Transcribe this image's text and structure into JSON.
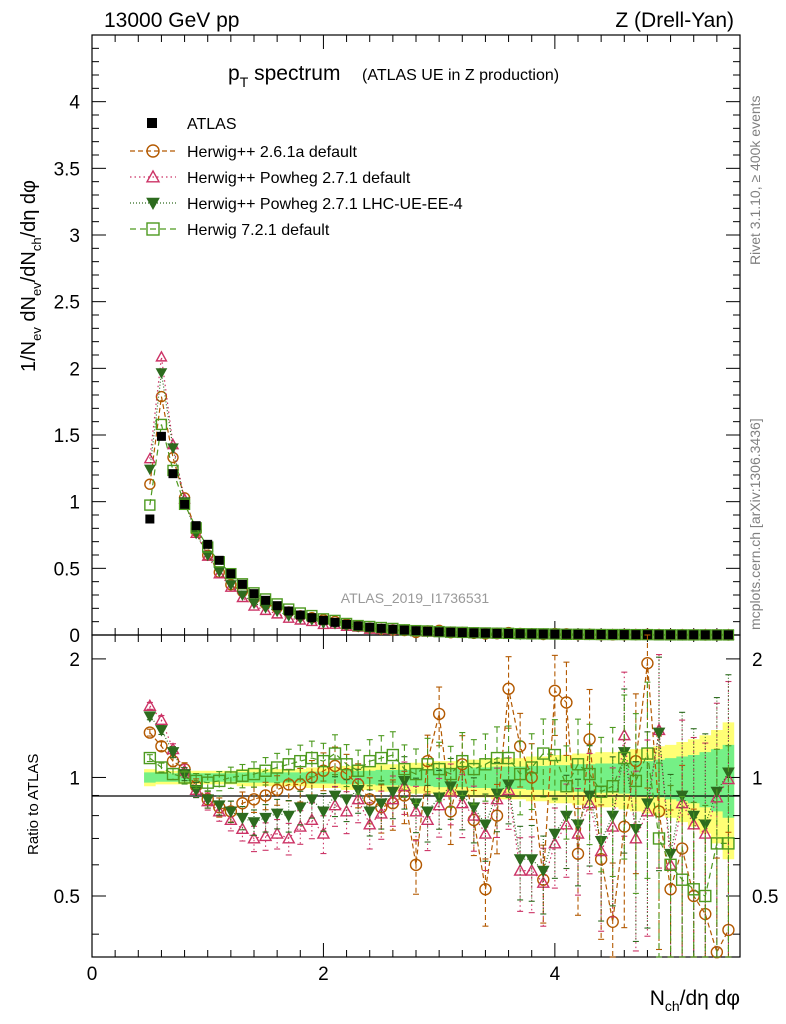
{
  "header": {
    "left": "13000 GeV pp",
    "right": "Z (Drell-Yan)"
  },
  "side_labels": {
    "rivet": "Rivet 3.1.10, ≥ 400k events",
    "mcplots": "mcplots.cern.ch [arXiv:1306.3436]"
  },
  "chart_data": {
    "type": "scatter",
    "title": "p",
    "title_sub": "T",
    "title_rest": " spectrum",
    "subtitle": "(ATLAS UE in Z production)",
    "watermark": "ATLAS_2019_I1736531",
    "xlabel": "N",
    "xlabel_sub": "ch",
    "xlabel_rest": "/dη dφ",
    "ylabel_top": "1/N",
    "ylabel_top_sub1": "ev",
    "ylabel_top_mid": " dN",
    "ylabel_top_sub2": "ev",
    "ylabel_top_mid2": "/dN",
    "ylabel_top_sub3": "ch",
    "ylabel_top_rest": "/dη dφ",
    "ylabel_bottom": "Ratio to ATLAS",
    "xlim": [
      0,
      5.6
    ],
    "ylim_top": [
      0,
      4.5
    ],
    "ylim_bottom": [
      0.35,
      2.3
    ],
    "x_ticks": [
      "0",
      "2",
      "4"
    ],
    "y_ticks_top": [
      "0",
      "0.5",
      "1",
      "1.5",
      "2",
      "2.5",
      "3",
      "3.5",
      "4"
    ],
    "y_ticks_bottom": [
      "0.5",
      "1",
      "2"
    ],
    "x": [
      0.5,
      0.6,
      0.7,
      0.8,
      0.9,
      1.0,
      1.1,
      1.2,
      1.3,
      1.4,
      1.5,
      1.6,
      1.7,
      1.8,
      1.9,
      2.0,
      2.1,
      2.2,
      2.3,
      2.4,
      2.5,
      2.6,
      2.7,
      2.8,
      2.9,
      3.0,
      3.1,
      3.2,
      3.3,
      3.4,
      3.5,
      3.6,
      3.7,
      3.8,
      3.9,
      4.0,
      4.1,
      4.2,
      4.3,
      4.4,
      4.5,
      4.6,
      4.7,
      4.8,
      4.9,
      5.0,
      5.1,
      5.2,
      5.3,
      5.4,
      5.5
    ],
    "data_values": [
      0.87,
      1.49,
      1.21,
      0.98,
      0.82,
      0.68,
      0.56,
      0.46,
      0.38,
      0.31,
      0.26,
      0.22,
      0.18,
      0.15,
      0.13,
      0.11,
      0.095,
      0.08,
      0.068,
      0.058,
      0.05,
      0.043,
      0.037,
      0.032,
      0.028,
      0.024,
      0.021,
      0.018,
      0.016,
      0.014,
      0.012,
      0.011,
      0.0095,
      0.0083,
      0.0073,
      0.0064,
      0.0056,
      0.005,
      0.0044,
      0.0039,
      0.0035,
      0.0031,
      0.0027,
      0.0024,
      0.0022,
      0.0019,
      0.0017,
      0.0015,
      0.0014,
      0.0012,
      0.0011
    ],
    "band_yellow": [
      0.05,
      0.04,
      0.04,
      0.04,
      0.04,
      0.04,
      0.04,
      0.04,
      0.05,
      0.05,
      0.05,
      0.05,
      0.05,
      0.05,
      0.06,
      0.06,
      0.06,
      0.07,
      0.07,
      0.07,
      0.08,
      0.08,
      0.08,
      0.09,
      0.09,
      0.1,
      0.1,
      0.1,
      0.11,
      0.11,
      0.12,
      0.12,
      0.12,
      0.13,
      0.13,
      0.14,
      0.14,
      0.15,
      0.15,
      0.16,
      0.16,
      0.17,
      0.18,
      0.19,
      0.2,
      0.21,
      0.23,
      0.25,
      0.28,
      0.32,
      0.38
    ],
    "band_green": [
      0.03,
      0.025,
      0.025,
      0.025,
      0.025,
      0.025,
      0.025,
      0.025,
      0.03,
      0.03,
      0.03,
      0.03,
      0.03,
      0.03,
      0.035,
      0.035,
      0.035,
      0.04,
      0.04,
      0.04,
      0.045,
      0.045,
      0.045,
      0.05,
      0.05,
      0.055,
      0.055,
      0.055,
      0.06,
      0.06,
      0.065,
      0.065,
      0.065,
      0.07,
      0.07,
      0.075,
      0.075,
      0.08,
      0.08,
      0.085,
      0.085,
      0.09,
      0.1,
      0.1,
      0.11,
      0.12,
      0.13,
      0.14,
      0.16,
      0.18,
      0.21
    ],
    "legend": {
      "data_label": "ATLAS"
    },
    "series": [
      {
        "name": "Herwig++ 2.6.1a default",
        "color": "#b35900",
        "dash": "5,3",
        "marker": "circle",
        "ratio": [
          1.3,
          1.2,
          1.1,
          1.05,
          0.95,
          0.88,
          0.84,
          0.82,
          0.86,
          0.88,
          0.9,
          0.93,
          0.96,
          0.96,
          1.0,
          1.04,
          1.07,
          1.02,
          0.96,
          0.88,
          0.84,
          0.86,
          0.9,
          0.6,
          1.1,
          1.45,
          0.82,
          1.08,
          0.78,
          0.52,
          0.8,
          1.68,
          1.2,
          1.0,
          0.55,
          1.66,
          1.55,
          0.64,
          1.25,
          0.62,
          0.43,
          0.75,
          1.1,
          1.95,
          0.82,
          0.52,
          0.66,
          0.5,
          0.45,
          0.36,
          0.41
        ]
      },
      {
        "name": "Herwig++ Powheg 2.7.1 default",
        "color": "#cc3366",
        "dash": "1.5,3",
        "marker": "triangle",
        "ratio": [
          1.52,
          1.4,
          1.18,
          1.04,
          0.93,
          0.87,
          0.82,
          0.78,
          0.74,
          0.7,
          0.71,
          0.72,
          0.7,
          0.75,
          0.78,
          0.72,
          0.85,
          0.82,
          0.88,
          0.76,
          0.81,
          0.88,
          0.95,
          0.82,
          0.78,
          0.85,
          0.92,
          0.86,
          0.8,
          0.72,
          0.88,
          0.93,
          0.58,
          0.58,
          0.54,
          0.68,
          0.76,
          0.72,
          0.86,
          0.65,
          0.75,
          1.28,
          0.7,
          0.82,
          1.32,
          0.6,
          0.86,
          0.76,
          0.72,
          0.89,
          0.99
        ]
      },
      {
        "name": "Herwig++ Powheg 2.7.1 LHC-UE-EE-4",
        "color": "#2d6b1e",
        "dash": "1,2",
        "marker": "triangle-down",
        "ratio": [
          1.43,
          1.32,
          1.16,
          1.02,
          0.93,
          0.88,
          0.85,
          0.82,
          0.79,
          0.77,
          0.79,
          0.81,
          0.8,
          0.84,
          0.88,
          0.82,
          0.9,
          0.88,
          0.93,
          0.82,
          0.86,
          0.92,
          0.98,
          0.86,
          0.82,
          0.89,
          0.95,
          0.9,
          0.84,
          0.76,
          0.91,
          0.96,
          0.62,
          0.62,
          0.58,
          0.72,
          0.8,
          0.76,
          0.9,
          0.69,
          0.8,
          1.16,
          0.74,
          0.86,
          1.3,
          0.64,
          0.9,
          0.8,
          0.76,
          0.92,
          1.03
        ]
      },
      {
        "name": "Herwig 7.2.1 default",
        "color": "#4d9a1f",
        "dash": "6,4",
        "marker": "square",
        "ratio": [
          1.12,
          1.06,
          1.02,
          1.0,
          0.98,
          0.97,
          0.98,
          1.0,
          1.01,
          1.02,
          1.04,
          1.06,
          1.08,
          1.1,
          1.12,
          1.1,
          1.15,
          1.08,
          1.04,
          1.1,
          1.12,
          1.14,
          1.05,
          1.02,
          1.08,
          1.05,
          1.02,
          1.1,
          1.05,
          1.08,
          1.12,
          1.12,
          1.02,
          1.06,
          1.15,
          1.14,
          0.95,
          1.08,
          1.02,
          0.92,
          0.95,
          1.12,
          0.98,
          1.15,
          0.7,
          0.6,
          0.55,
          0.52,
          0.5,
          0.68,
          0.68
        ]
      }
    ]
  }
}
